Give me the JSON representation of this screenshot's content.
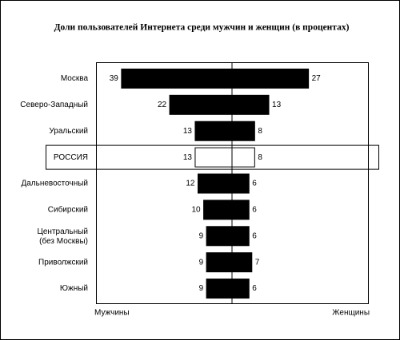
{
  "chart_data": {
    "type": "butterfly",
    "title": "Доли пользователей Интернета среди мужчин и женщин (в процентах)",
    "left_label": "Мужчины",
    "right_label": "Женщины",
    "categories": [
      "Москва",
      "Северо-Западный",
      "Уральский",
      "РОССИЯ",
      "Дальневосточный",
      "Сибирский",
      "Центральный\n(без Москвы)",
      "Приволжский",
      "Южный"
    ],
    "series": [
      {
        "name": "Мужчины",
        "side": "left",
        "color": "#000000",
        "values": [
          39,
          22,
          13,
          13,
          12,
          10,
          9,
          9,
          9
        ]
      },
      {
        "name": "Женщины",
        "side": "right",
        "color": "#000000",
        "values": [
          27,
          13,
          8,
          8,
          6,
          6,
          6,
          7,
          6
        ]
      }
    ],
    "highlight": 3,
    "highlight_color": "#ffffff",
    "xlim": [
      0,
      48
    ]
  }
}
